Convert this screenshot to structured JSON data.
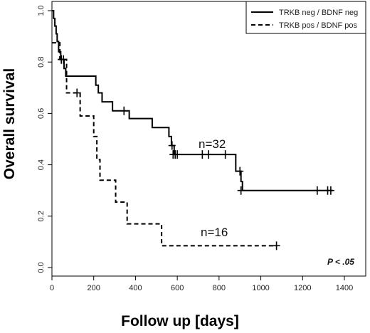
{
  "chart_data": {
    "type": "line",
    "subtype": "kaplan-meier",
    "title": "",
    "xlabel": "Follow up [days]",
    "ylabel": "Overall survival",
    "xlim": [
      0,
      1400
    ],
    "ylim": [
      0,
      1.0
    ],
    "xticks": [
      "0",
      "200",
      "400",
      "600",
      "800",
      "1000",
      "1200",
      "1400"
    ],
    "yticks": [
      "0.0",
      "0.2",
      "0.4",
      "0.6",
      "0.8",
      "1.0"
    ],
    "legend_position": "top-right",
    "grid": false,
    "annotation": "P < .05",
    "series": [
      {
        "name": "TRKB neg / BDNF neg",
        "label": "n=32",
        "style": "solid",
        "color": "#000000",
        "steps": [
          [
            0,
            1.0
          ],
          [
            8,
            0.97
          ],
          [
            14,
            0.94
          ],
          [
            20,
            0.91
          ],
          [
            25,
            0.88
          ],
          [
            32,
            0.84
          ],
          [
            42,
            0.81
          ],
          [
            58,
            0.775
          ],
          [
            66,
            0.745
          ],
          [
            210,
            0.71
          ],
          [
            222,
            0.68
          ],
          [
            240,
            0.645
          ],
          [
            290,
            0.61
          ],
          [
            370,
            0.58
          ],
          [
            480,
            0.545
          ],
          [
            560,
            0.51
          ],
          [
            572,
            0.475
          ],
          [
            585,
            0.44
          ],
          [
            880,
            0.375
          ],
          [
            905,
            0.335
          ],
          [
            912,
            0.3
          ],
          [
            1345,
            0.3
          ]
        ],
        "censored": [
          [
            45,
            0.81
          ],
          [
            55,
            0.81
          ],
          [
            345,
            0.61
          ],
          [
            575,
            0.475
          ],
          [
            580,
            0.44
          ],
          [
            590,
            0.44
          ],
          [
            600,
            0.44
          ],
          [
            720,
            0.44
          ],
          [
            750,
            0.44
          ],
          [
            830,
            0.44
          ],
          [
            900,
            0.375
          ],
          [
            905,
            0.3
          ],
          [
            1270,
            0.3
          ],
          [
            1320,
            0.3
          ],
          [
            1335,
            0.3
          ]
        ]
      },
      {
        "name": "TRKB pos / BDNF pos",
        "label": "n=16",
        "style": "dashed",
        "color": "#000000",
        "steps": [
          [
            0,
            0.875
          ],
          [
            38,
            0.81
          ],
          [
            70,
            0.68
          ],
          [
            135,
            0.59
          ],
          [
            200,
            0.51
          ],
          [
            215,
            0.42
          ],
          [
            230,
            0.34
          ],
          [
            305,
            0.255
          ],
          [
            325,
            0.255
          ],
          [
            360,
            0.17
          ],
          [
            525,
            0.085
          ],
          [
            1075,
            0.085
          ]
        ],
        "censored": [
          [
            45,
            0.81
          ],
          [
            120,
            0.68
          ],
          [
            1075,
            0.085
          ]
        ]
      }
    ]
  }
}
